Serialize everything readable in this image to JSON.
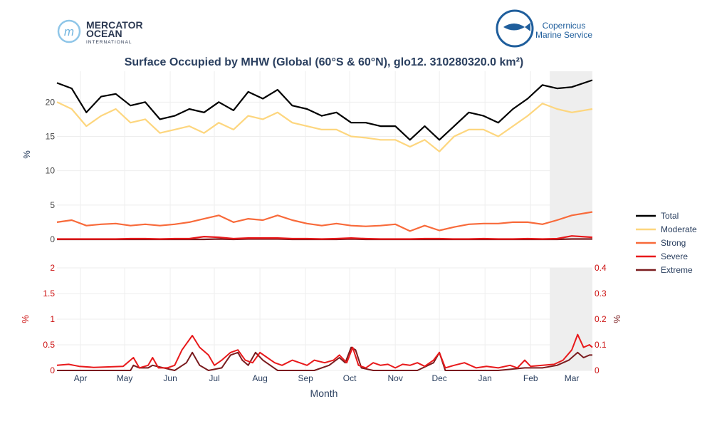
{
  "logos": {
    "mercator_line1": "MERCATOR",
    "mercator_line2": "OCEAN",
    "mercator_line3": "INTERNATIONAL",
    "copernicus_line1": "Copernicus",
    "copernicus_line2": "Marine Service"
  },
  "colors": {
    "total": "#000000",
    "moderate": "#fdd67e",
    "strong": "#f86a3a",
    "severe": "#e8191b",
    "extreme": "#7a1c1f",
    "shade": "#eeeeee",
    "title": "#2a3f5f",
    "right_axis": "#cc1111"
  },
  "chart_data": {
    "type": "line",
    "title": "Surface Occupied by MHW (Global (60°S & 60°N), glo12. 310280320.0 km²)",
    "xlabel": "Month",
    "x_ticks": [
      "Apr",
      "May",
      "Jun",
      "Jul",
      "Aug",
      "Sep",
      "Oct",
      "Nov",
      "Dec",
      "Jan",
      "Feb",
      "Mar"
    ],
    "x_tick_days": [
      16,
      46,
      77,
      107,
      138,
      169,
      199,
      230,
      260,
      291,
      322,
      350
    ],
    "x_range": [
      0,
      364
    ],
    "shaded_range_days": [
      335,
      364
    ],
    "top": {
      "ylabel": "%",
      "ylim": [
        0,
        24.5
      ],
      "y_ticks": [
        0,
        5,
        10,
        15,
        20
      ],
      "x_days": [
        0,
        10,
        20,
        30,
        40,
        50,
        60,
        70,
        80,
        90,
        100,
        110,
        120,
        130,
        140,
        150,
        160,
        170,
        180,
        190,
        200,
        210,
        220,
        230,
        240,
        250,
        260,
        270,
        280,
        290,
        300,
        310,
        320,
        330,
        340,
        350,
        364
      ],
      "series": [
        {
          "name": "Total",
          "values": [
            22.8,
            22.0,
            18.5,
            20.8,
            21.2,
            19.5,
            20.0,
            17.5,
            18.0,
            19.0,
            18.5,
            20.0,
            18.8,
            21.5,
            20.5,
            21.8,
            19.5,
            19.0,
            18.0,
            18.5,
            17.0,
            17.0,
            16.5,
            16.5,
            14.5,
            16.5,
            14.5,
            16.5,
            18.5,
            18.0,
            17.0,
            19.0,
            20.5,
            22.5,
            22.0,
            22.2,
            23.2
          ]
        },
        {
          "name": "Moderate",
          "values": [
            20.0,
            19.0,
            16.5,
            18.0,
            19.0,
            17.0,
            17.5,
            15.5,
            16.0,
            16.5,
            15.5,
            17.0,
            16.0,
            18.0,
            17.5,
            18.5,
            17.0,
            16.5,
            16.0,
            16.0,
            15.0,
            14.8,
            14.5,
            14.5,
            13.5,
            14.5,
            12.8,
            15.0,
            16.0,
            16.0,
            15.0,
            16.5,
            18.0,
            19.8,
            19.0,
            18.5,
            19.0
          ]
        },
        {
          "name": "Strong",
          "values": [
            2.5,
            2.8,
            2.0,
            2.2,
            2.3,
            2.0,
            2.2,
            2.0,
            2.2,
            2.5,
            3.0,
            3.5,
            2.5,
            3.0,
            2.8,
            3.5,
            2.8,
            2.3,
            2.0,
            2.3,
            2.0,
            1.9,
            2.0,
            2.2,
            1.2,
            2.0,
            1.3,
            1.8,
            2.2,
            2.3,
            2.3,
            2.5,
            2.5,
            2.2,
            2.8,
            3.5,
            4.0
          ]
        },
        {
          "name": "Severe",
          "values": [
            0.05,
            0.05,
            0.05,
            0.05,
            0.05,
            0.1,
            0.1,
            0.05,
            0.1,
            0.1,
            0.4,
            0.3,
            0.1,
            0.2,
            0.2,
            0.2,
            0.1,
            0.1,
            0.05,
            0.1,
            0.2,
            0.1,
            0.05,
            0.05,
            0.05,
            0.1,
            0.1,
            0.05,
            0.05,
            0.1,
            0.05,
            0.05,
            0.1,
            0.05,
            0.1,
            0.5,
            0.3
          ]
        },
        {
          "name": "Extreme",
          "values": [
            0.0,
            0.0,
            0.0,
            0.0,
            0.0,
            0.0,
            0.0,
            0.0,
            0.0,
            0.0,
            0.0,
            0.05,
            0.0,
            0.05,
            0.05,
            0.05,
            0.0,
            0.0,
            0.0,
            0.0,
            0.05,
            0.0,
            0.0,
            0.0,
            0.0,
            0.0,
            0.0,
            0.0,
            0.0,
            0.0,
            0.0,
            0.0,
            0.0,
            0.0,
            0.0,
            0.05,
            0.05
          ]
        }
      ]
    },
    "bottom": {
      "ylabel_left": "%",
      "ylabel_right": "%",
      "ylim_left": [
        0,
        2
      ],
      "y_ticks_left": [
        "0",
        "0.5",
        "1",
        "1.5",
        "2"
      ],
      "ylim_right": [
        0,
        0.4
      ],
      "y_ticks_right": [
        "0",
        "0.1",
        "0.2",
        "0.3",
        "0.4"
      ],
      "series": [
        {
          "name": "Severe",
          "axis": "left",
          "points": [
            [
              0,
              0.1
            ],
            [
              8,
              0.12
            ],
            [
              15,
              0.08
            ],
            [
              25,
              0.06
            ],
            [
              35,
              0.07
            ],
            [
              45,
              0.08
            ],
            [
              52,
              0.25
            ],
            [
              56,
              0.05
            ],
            [
              62,
              0.1
            ],
            [
              65,
              0.25
            ],
            [
              69,
              0.05
            ],
            [
              75,
              0.05
            ],
            [
              80,
              0.1
            ],
            [
              85,
              0.4
            ],
            [
              92,
              0.68
            ],
            [
              97,
              0.45
            ],
            [
              103,
              0.3
            ],
            [
              107,
              0.1
            ],
            [
              112,
              0.2
            ],
            [
              118,
              0.35
            ],
            [
              123,
              0.4
            ],
            [
              128,
              0.2
            ],
            [
              133,
              0.15
            ],
            [
              138,
              0.35
            ],
            [
              143,
              0.25
            ],
            [
              148,
              0.15
            ],
            [
              153,
              0.1
            ],
            [
              160,
              0.2
            ],
            [
              165,
              0.15
            ],
            [
              170,
              0.1
            ],
            [
              175,
              0.2
            ],
            [
              182,
              0.15
            ],
            [
              188,
              0.2
            ],
            [
              192,
              0.3
            ],
            [
              197,
              0.15
            ],
            [
              201,
              0.45
            ],
            [
              205,
              0.1
            ],
            [
              210,
              0.05
            ],
            [
              215,
              0.15
            ],
            [
              220,
              0.1
            ],
            [
              225,
              0.12
            ],
            [
              230,
              0.05
            ],
            [
              235,
              0.12
            ],
            [
              240,
              0.1
            ],
            [
              245,
              0.15
            ],
            [
              250,
              0.08
            ],
            [
              256,
              0.2
            ],
            [
              260,
              0.35
            ],
            [
              264,
              0.05
            ],
            [
              270,
              0.1
            ],
            [
              277,
              0.15
            ],
            [
              285,
              0.05
            ],
            [
              292,
              0.08
            ],
            [
              300,
              0.05
            ],
            [
              308,
              0.1
            ],
            [
              313,
              0.05
            ],
            [
              318,
              0.2
            ],
            [
              322,
              0.08
            ],
            [
              330,
              0.1
            ],
            [
              338,
              0.12
            ],
            [
              344,
              0.2
            ],
            [
              350,
              0.4
            ],
            [
              354,
              0.7
            ],
            [
              358,
              0.45
            ],
            [
              362,
              0.5
            ],
            [
              364,
              0.45
            ]
          ]
        },
        {
          "name": "Extreme",
          "axis": "right",
          "points": [
            [
              0,
              0.0
            ],
            [
              50,
              0.0
            ],
            [
              52,
              0.02
            ],
            [
              56,
              0.01
            ],
            [
              62,
              0.01
            ],
            [
              65,
              0.02
            ],
            [
              80,
              0.0
            ],
            [
              88,
              0.03
            ],
            [
              92,
              0.07
            ],
            [
              97,
              0.02
            ],
            [
              103,
              0.0
            ],
            [
              112,
              0.01
            ],
            [
              118,
              0.06
            ],
            [
              123,
              0.07
            ],
            [
              126,
              0.04
            ],
            [
              130,
              0.02
            ],
            [
              135,
              0.07
            ],
            [
              140,
              0.04
            ],
            [
              150,
              0.0
            ],
            [
              160,
              0.0
            ],
            [
              175,
              0.0
            ],
            [
              185,
              0.02
            ],
            [
              192,
              0.05
            ],
            [
              196,
              0.03
            ],
            [
              200,
              0.09
            ],
            [
              203,
              0.08
            ],
            [
              207,
              0.01
            ],
            [
              215,
              0.0
            ],
            [
              230,
              0.0
            ],
            [
              245,
              0.0
            ],
            [
              256,
              0.03
            ],
            [
              260,
              0.07
            ],
            [
              264,
              0.0
            ],
            [
              300,
              0.0
            ],
            [
              318,
              0.01
            ],
            [
              330,
              0.01
            ],
            [
              340,
              0.02
            ],
            [
              348,
              0.04
            ],
            [
              354,
              0.07
            ],
            [
              358,
              0.05
            ],
            [
              362,
              0.06
            ],
            [
              364,
              0.06
            ]
          ]
        }
      ]
    },
    "legend": [
      {
        "name": "Total",
        "color": "#000000"
      },
      {
        "name": "Moderate",
        "color": "#fdd67e"
      },
      {
        "name": "Strong",
        "color": "#f86a3a"
      },
      {
        "name": "Severe",
        "color": "#e8191b"
      },
      {
        "name": "Extreme",
        "color": "#7a1c1f"
      }
    ]
  }
}
